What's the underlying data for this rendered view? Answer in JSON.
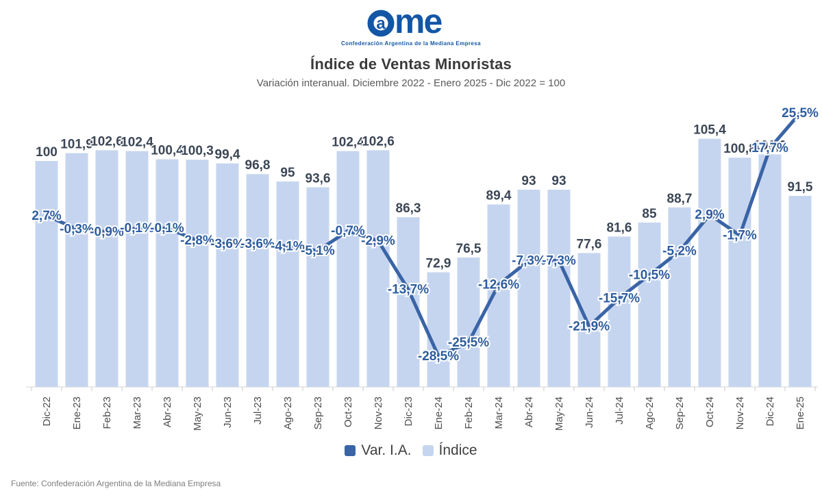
{
  "header": {
    "logo_text": "Came",
    "logo_tagline": "Confederación Argentina de la Mediana Empresa",
    "logo_color": "#1356a5",
    "title": "Índice de Ventas Minoristas",
    "subtitle": "Variación interanual. Diciembre 2022 - Enero 2025 - Dic 2022 = 100"
  },
  "chart_data": {
    "type": "combo",
    "categories": [
      "Dic-22",
      "Ene-23",
      "Feb-23",
      "Mar-23",
      "Abr-23",
      "May-23",
      "Jun-23",
      "Jul-23",
      "Ago-23",
      "Sep-23",
      "Oct-23",
      "Nov-23",
      "Dic-23",
      "Ene-24",
      "Feb-24",
      "Mar-24",
      "Abr-24",
      "May-24",
      "Jun-24",
      "Jul-24",
      "Ago-24",
      "Sep-24",
      "Oct-24",
      "Nov-24",
      "Dic-24",
      "Ene-25"
    ],
    "series": [
      {
        "name": "Var. I.A.",
        "type": "line",
        "color": "#3a64a6",
        "values": [
          2.7,
          -0.3,
          -0.9,
          -0.1,
          -0.1,
          -2.8,
          -3.6,
          -3.6,
          -4.1,
          -5.1,
          -0.7,
          -2.9,
          -13.7,
          -28.5,
          -25.5,
          -12.6,
          -7.3,
          -7.3,
          -21.9,
          -15.7,
          -10.5,
          -5.2,
          2.9,
          -1.7,
          17.7,
          25.5
        ],
        "labels": [
          "2,7%",
          "-0,3%",
          "-0,9%",
          "-0,1%",
          "-0,1%",
          "-2,8%",
          "-3,6%",
          "-3,6%",
          "-4,1%",
          "-5,1%",
          "-0,7%",
          "-2,9%",
          "-13,7%",
          "-28,5%",
          "-25,5%",
          "-12,6%",
          "-7,3%",
          "-7,3%",
          "-21,9%",
          "-15,7%",
          "-10,5%",
          "-5,2%",
          "2,9%",
          "-1,7%",
          "17,7%",
          "25,5%"
        ]
      },
      {
        "name": "Índice",
        "type": "bar",
        "color": "#c6d5ef",
        "values": [
          100,
          101.9,
          102.6,
          102.4,
          100.4,
          100.3,
          99.4,
          96.8,
          95,
          93.6,
          102.4,
          102.6,
          86.3,
          72.9,
          76.5,
          89.4,
          93,
          93,
          77.6,
          81.6,
          85,
          88.7,
          105.4,
          100.8,
          101.6,
          91.5
        ],
        "labels": [
          "100",
          "101,9",
          "102,6",
          "102,4",
          "100,4",
          "100,3",
          "99,4",
          "96,8",
          "95",
          "93,6",
          "102,4",
          "102,6",
          "86,3",
          "72,9",
          "76,5",
          "89,4",
          "93",
          "93",
          "77,6",
          "81,6",
          "85",
          "88,7",
          "105,4",
          "100,8",
          "101,6",
          "91,5"
        ]
      }
    ],
    "bar_axis": {
      "min": 45,
      "max": 110
    },
    "line_axis": {
      "min": -30,
      "max": 27
    },
    "grid": false,
    "legend_position": "bottom",
    "bar_label_color": "#3b4656",
    "line_label_color": "#2d5c9e",
    "axis_color": "#d6d6d6",
    "tick_color": "#c9c9c9",
    "xlabel_color": "#4d4d4d"
  },
  "legend": {
    "items": [
      {
        "label": "Var. I.A.",
        "color": "#3a64a6"
      },
      {
        "label": "Índice",
        "color": "#c6d5ef"
      }
    ]
  },
  "footer": {
    "source": "Fuente: Confederación Argentina de la Mediana Empresa"
  }
}
